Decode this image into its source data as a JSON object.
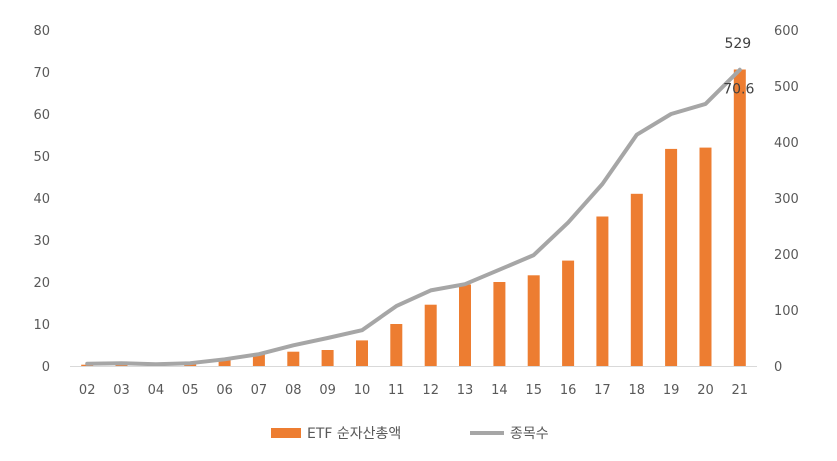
{
  "chart_data": {
    "type": "bar",
    "categories": [
      "02",
      "03",
      "04",
      "05",
      "06",
      "07",
      "08",
      "09",
      "10",
      "11",
      "12",
      "13",
      "14",
      "15",
      "16",
      "17",
      "18",
      "19",
      "20",
      "21"
    ],
    "series": [
      {
        "name": "ETF 순자산총액",
        "type": "bar",
        "axis": "left",
        "color": "#ED7D31",
        "values": [
          0.3,
          0.4,
          0.4,
          0.5,
          1.5,
          2.8,
          3.4,
          3.8,
          6.1,
          10.0,
          14.6,
          19.4,
          20.0,
          21.6,
          25.1,
          35.6,
          41.0,
          51.7,
          52.0,
          70.6
        ]
      },
      {
        "name": "종목수",
        "type": "line",
        "axis": "right",
        "color": "#A6A6A6",
        "values": [
          4,
          5,
          3,
          5,
          12,
          21,
          37,
          50,
          64,
          107,
          135,
          146,
          172,
          198,
          256,
          325,
          413,
          450,
          468,
          529
        ]
      }
    ],
    "ylim_left": [
      0,
      80
    ],
    "ylim_right": [
      0,
      600
    ],
    "yticks_left": [
      0,
      10,
      20,
      30,
      40,
      50,
      60,
      70,
      80
    ],
    "yticks_right": [
      0,
      100,
      200,
      300,
      400,
      500,
      600
    ],
    "data_labels": [
      {
        "series": "ETF 순자산총액",
        "category": "21",
        "text": "70.6"
      },
      {
        "series": "종목수",
        "category": "21",
        "text": "529"
      }
    ],
    "grid": false,
    "legend": "bottom"
  }
}
